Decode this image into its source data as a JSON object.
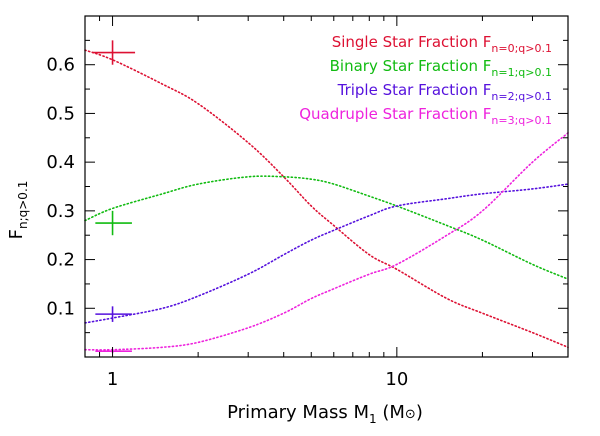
{
  "chart_data": {
    "type": "line",
    "xlabel": {
      "main": "Primary Mass M",
      "sub": "1",
      "unit_open": " (M",
      "unit_symbol": "⊙",
      "unit_close": ")"
    },
    "ylabel": {
      "main": "F",
      "sub": "n;q>0.1"
    },
    "x_scale": "log",
    "xlim": [
      0.8,
      40
    ],
    "ylim": [
      0.0,
      0.7
    ],
    "x_ticks": [
      {
        "value": 1,
        "label": "1"
      },
      {
        "value": 10,
        "label": "10"
      }
    ],
    "y_ticks": [
      {
        "value": 0.1,
        "label": "0.1"
      },
      {
        "value": 0.2,
        "label": "0.2"
      },
      {
        "value": 0.3,
        "label": "0.3"
      },
      {
        "value": 0.4,
        "label": "0.4"
      },
      {
        "value": 0.5,
        "label": "0.5"
      },
      {
        "value": 0.6,
        "label": "0.6"
      }
    ],
    "legend_placement": "top-right",
    "series": [
      {
        "name": "Single Star Fraction",
        "sub": "n=0;q>0.1",
        "color": "#dd1133",
        "line_style": "dotted",
        "x": [
          0.8,
          1,
          1.5,
          2,
          3,
          4,
          5,
          6,
          8,
          10,
          15,
          20,
          30,
          40
        ],
        "y": [
          0.63,
          0.61,
          0.56,
          0.52,
          0.44,
          0.37,
          0.31,
          0.27,
          0.21,
          0.18,
          0.12,
          0.09,
          0.05,
          0.02
        ],
        "obs_point": {
          "x": 1,
          "y": 0.625,
          "xerr": [
            0.85,
            1.2
          ],
          "yerr": [
            0.6,
            0.65
          ]
        }
      },
      {
        "name": "Binary Star Fraction",
        "sub": "n=1;q>0.1",
        "color": "#11bb11",
        "line_style": "dotted",
        "x": [
          0.8,
          1,
          1.5,
          2,
          3,
          4,
          5,
          6,
          8,
          10,
          15,
          20,
          30,
          40
        ],
        "y": [
          0.28,
          0.305,
          0.335,
          0.355,
          0.37,
          0.37,
          0.365,
          0.355,
          0.33,
          0.31,
          0.27,
          0.24,
          0.19,
          0.16
        ],
        "obs_point": {
          "x": 1,
          "y": 0.275,
          "xerr": [
            0.87,
            1.17
          ],
          "yerr": [
            0.25,
            0.3
          ]
        }
      },
      {
        "name": "Triple Star Fraction",
        "sub": "n=2;q>0.1",
        "color": "#5511dd",
        "line_style": "dotted",
        "x": [
          0.8,
          1,
          1.5,
          2,
          3,
          4,
          5,
          6,
          8,
          10,
          15,
          20,
          30,
          40
        ],
        "y": [
          0.07,
          0.08,
          0.1,
          0.125,
          0.17,
          0.21,
          0.24,
          0.26,
          0.29,
          0.31,
          0.325,
          0.335,
          0.345,
          0.355
        ],
        "obs_point": {
          "x": 1,
          "y": 0.088,
          "xerr": [
            0.87,
            1.17
          ],
          "yerr": [
            0.072,
            0.104
          ]
        }
      },
      {
        "name": "Quadruple Star Fraction",
        "sub": "n=3;q>0.1",
        "color": "#ee22dd",
        "line_style": "dotted",
        "x": [
          0.8,
          1,
          1.5,
          2,
          3,
          4,
          5,
          6,
          8,
          10,
          15,
          20,
          30,
          40
        ],
        "y": [
          0.015,
          0.015,
          0.02,
          0.03,
          0.06,
          0.09,
          0.12,
          0.14,
          0.17,
          0.19,
          0.25,
          0.3,
          0.4,
          0.46
        ],
        "obs_point": {
          "x": 1,
          "y": 0.012,
          "xerr": [
            0.87,
            1.17
          ],
          "yerr": [
            0.008,
            0.016
          ]
        }
      }
    ]
  }
}
